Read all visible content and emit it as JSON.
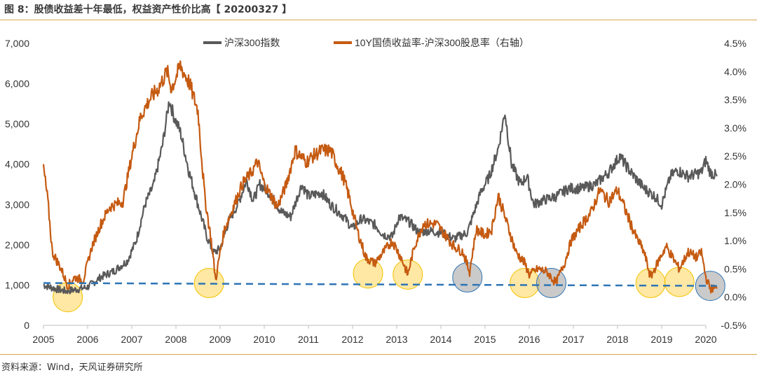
{
  "header": {
    "title": "图 8：股债收益差十年最低，权益资产性价比高【 20200327 】"
  },
  "footer": {
    "source": "资料来源：Wind，天风证券研究所"
  },
  "colors": {
    "index": "#595959",
    "spread": "#c55a11",
    "baseline": "#2e75b6",
    "yellow": "#ffd966",
    "gray": "#a6a6a6"
  },
  "chart_data": {
    "type": "line",
    "x_ticks": [
      "2005",
      "2006",
      "2007",
      "2008",
      "2009",
      "2010",
      "2011",
      "2012",
      "2013",
      "2014",
      "2015",
      "2016",
      "2017",
      "2018",
      "2019",
      "2020"
    ],
    "left_axis": {
      "ticks": [
        "0",
        "1,000",
        "2,000",
        "3,000",
        "4,000",
        "5,000",
        "6,000",
        "7,000"
      ],
      "ylim": [
        0,
        7000
      ]
    },
    "right_axis": {
      "ticks": [
        "-0.5%",
        "0.0%",
        "0.5%",
        "1.0%",
        "1.5%",
        "2.0%",
        "2.5%",
        "3.0%",
        "3.5%",
        "4.0%",
        "4.5%"
      ],
      "ylim": [
        -0.5,
        4.5
      ]
    },
    "legend_position": "top",
    "series": [
      {
        "name": "沪深300指数",
        "axis": "left",
        "points": [
          [
            2005.0,
            1000
          ],
          [
            2005.3,
            900
          ],
          [
            2005.5,
            850
          ],
          [
            2005.8,
            900
          ],
          [
            2006.0,
            950
          ],
          [
            2006.3,
            1200
          ],
          [
            2006.6,
            1350
          ],
          [
            2006.9,
            1600
          ],
          [
            2007.1,
            2100
          ],
          [
            2007.3,
            3000
          ],
          [
            2007.5,
            3500
          ],
          [
            2007.7,
            4500
          ],
          [
            2007.85,
            5600
          ],
          [
            2007.95,
            5200
          ],
          [
            2008.1,
            4800
          ],
          [
            2008.3,
            3800
          ],
          [
            2008.5,
            3000
          ],
          [
            2008.7,
            2200
          ],
          [
            2008.85,
            1800
          ],
          [
            2009.0,
            1900
          ],
          [
            2009.2,
            2600
          ],
          [
            2009.4,
            3000
          ],
          [
            2009.6,
            3600
          ],
          [
            2009.75,
            3100
          ],
          [
            2009.9,
            3500
          ],
          [
            2010.1,
            3300
          ],
          [
            2010.4,
            2800
          ],
          [
            2010.6,
            2700
          ],
          [
            2010.85,
            3500
          ],
          [
            2011.0,
            3200
          ],
          [
            2011.3,
            3300
          ],
          [
            2011.5,
            3000
          ],
          [
            2011.8,
            2700
          ],
          [
            2012.0,
            2400
          ],
          [
            2012.2,
            2650
          ],
          [
            2012.5,
            2500
          ],
          [
            2012.7,
            2250
          ],
          [
            2012.9,
            2200
          ],
          [
            2013.05,
            2700
          ],
          [
            2013.3,
            2550
          ],
          [
            2013.5,
            2300
          ],
          [
            2013.7,
            2350
          ],
          [
            2014.0,
            2300
          ],
          [
            2014.3,
            2150
          ],
          [
            2014.6,
            2300
          ],
          [
            2014.9,
            3300
          ],
          [
            2015.1,
            3700
          ],
          [
            2015.3,
            4400
          ],
          [
            2015.45,
            5300
          ],
          [
            2015.6,
            4000
          ],
          [
            2015.8,
            3500
          ],
          [
            2015.95,
            3700
          ],
          [
            2016.1,
            3000
          ],
          [
            2016.3,
            3100
          ],
          [
            2016.6,
            3200
          ],
          [
            2016.9,
            3400
          ],
          [
            2017.2,
            3400
          ],
          [
            2017.5,
            3500
          ],
          [
            2017.8,
            3800
          ],
          [
            2018.05,
            4200
          ],
          [
            2018.3,
            3800
          ],
          [
            2018.6,
            3400
          ],
          [
            2018.85,
            3200
          ],
          [
            2019.0,
            3000
          ],
          [
            2019.2,
            3700
          ],
          [
            2019.35,
            3850
          ],
          [
            2019.6,
            3700
          ],
          [
            2019.9,
            3800
          ],
          [
            2020.0,
            4100
          ],
          [
            2020.1,
            3800
          ],
          [
            2020.25,
            3700
          ]
        ]
      },
      {
        "name": "10Y国债收益率-沪深300股息率（右轴）",
        "axis": "right",
        "points": [
          [
            2005.0,
            2.3
          ],
          [
            2005.1,
            1.7
          ],
          [
            2005.2,
            0.8
          ],
          [
            2005.4,
            0.5
          ],
          [
            2005.55,
            0.2
          ],
          [
            2005.7,
            0.35
          ],
          [
            2005.9,
            0.3
          ],
          [
            2006.1,
            0.9
          ],
          [
            2006.3,
            1.3
          ],
          [
            2006.5,
            1.6
          ],
          [
            2006.8,
            1.7
          ],
          [
            2007.0,
            2.5
          ],
          [
            2007.2,
            3.2
          ],
          [
            2007.4,
            3.5
          ],
          [
            2007.6,
            3.7
          ],
          [
            2007.8,
            4.0
          ],
          [
            2007.9,
            3.7
          ],
          [
            2008.1,
            4.1
          ],
          [
            2008.3,
            3.8
          ],
          [
            2008.5,
            3.3
          ],
          [
            2008.65,
            1.8
          ],
          [
            2008.8,
            1.0
          ],
          [
            2008.9,
            0.3
          ],
          [
            2009.0,
            0.8
          ],
          [
            2009.1,
            1.2
          ],
          [
            2009.3,
            1.6
          ],
          [
            2009.5,
            2.0
          ],
          [
            2009.7,
            2.2
          ],
          [
            2009.85,
            2.4
          ],
          [
            2010.0,
            2.0
          ],
          [
            2010.3,
            1.6
          ],
          [
            2010.5,
            2.0
          ],
          [
            2010.7,
            2.6
          ],
          [
            2010.95,
            2.4
          ],
          [
            2011.1,
            2.5
          ],
          [
            2011.3,
            2.6
          ],
          [
            2011.5,
            2.6
          ],
          [
            2011.8,
            2.1
          ],
          [
            2011.95,
            1.7
          ],
          [
            2012.1,
            1.2
          ],
          [
            2012.3,
            0.7
          ],
          [
            2012.5,
            0.6
          ],
          [
            2012.7,
            0.8
          ],
          [
            2012.9,
            1.0
          ],
          [
            2013.1,
            0.7
          ],
          [
            2013.25,
            0.4
          ],
          [
            2013.4,
            0.9
          ],
          [
            2013.6,
            1.3
          ],
          [
            2013.9,
            1.3
          ],
          [
            2014.0,
            1.2
          ],
          [
            2014.3,
            0.9
          ],
          [
            2014.5,
            0.8
          ],
          [
            2014.65,
            0.45
          ],
          [
            2014.8,
            1.2
          ],
          [
            2015.0,
            1.1
          ],
          [
            2015.15,
            1.2
          ],
          [
            2015.3,
            1.8
          ],
          [
            2015.5,
            1.3
          ],
          [
            2015.7,
            0.8
          ],
          [
            2015.9,
            0.6
          ],
          [
            2016.0,
            0.4
          ],
          [
            2016.2,
            0.5
          ],
          [
            2016.4,
            0.45
          ],
          [
            2016.6,
            0.25
          ],
          [
            2016.8,
            0.6
          ],
          [
            2016.95,
            1.0
          ],
          [
            2017.2,
            1.3
          ],
          [
            2017.4,
            1.5
          ],
          [
            2017.6,
            1.9
          ],
          [
            2017.8,
            1.7
          ],
          [
            2018.0,
            1.9
          ],
          [
            2018.2,
            1.5
          ],
          [
            2018.4,
            1.1
          ],
          [
            2018.6,
            0.8
          ],
          [
            2018.75,
            0.35
          ],
          [
            2018.9,
            0.6
          ],
          [
            2019.1,
            0.9
          ],
          [
            2019.25,
            0.7
          ],
          [
            2019.4,
            0.5
          ],
          [
            2019.6,
            0.8
          ],
          [
            2019.8,
            0.7
          ],
          [
            2019.9,
            0.8
          ],
          [
            2020.0,
            0.35
          ],
          [
            2020.1,
            0.15
          ],
          [
            2020.25,
            0.15
          ]
        ]
      },
      {
        "name": "",
        "axis": "right",
        "style": "dashed",
        "points": [
          [
            2005.0,
            0.25
          ],
          [
            2020.25,
            0.2
          ]
        ]
      }
    ],
    "annotations": [
      {
        "x": 2005.55,
        "y_right": 0.0,
        "color": "yellow"
      },
      {
        "x": 2008.75,
        "y_right": 0.25,
        "color": "yellow"
      },
      {
        "x": 2012.35,
        "y_right": 0.42,
        "color": "yellow"
      },
      {
        "x": 2013.25,
        "y_right": 0.4,
        "color": "yellow"
      },
      {
        "x": 2014.6,
        "y_right": 0.35,
        "color": "gray"
      },
      {
        "x": 2015.9,
        "y_right": 0.25,
        "color": "yellow"
      },
      {
        "x": 2016.5,
        "y_right": 0.25,
        "color": "gray"
      },
      {
        "x": 2018.75,
        "y_right": 0.25,
        "color": "yellow"
      },
      {
        "x": 2019.4,
        "y_right": 0.27,
        "color": "yellow"
      },
      {
        "x": 2020.1,
        "y_right": 0.2,
        "color": "gray"
      }
    ]
  }
}
